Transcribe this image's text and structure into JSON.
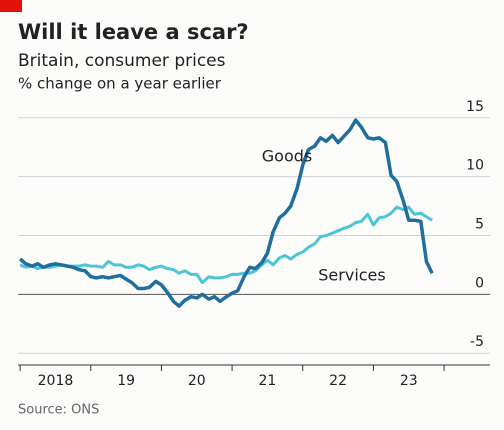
{
  "chart_data": {
    "type": "line",
    "title": "Will it leave a scar?",
    "subtitle": "Britain, consumer prices",
    "y_label": "% change on a year earlier",
    "source": "Source: ONS",
    "x": [
      2018.0,
      2018.08,
      2018.17,
      2018.25,
      2018.33,
      2018.42,
      2018.5,
      2018.58,
      2018.67,
      2018.75,
      2018.83,
      2018.92,
      2019.0,
      2019.08,
      2019.17,
      2019.25,
      2019.33,
      2019.42,
      2019.5,
      2019.58,
      2019.67,
      2019.75,
      2019.83,
      2019.92,
      2020.0,
      2020.08,
      2020.17,
      2020.25,
      2020.33,
      2020.42,
      2020.5,
      2020.58,
      2020.67,
      2020.75,
      2020.83,
      2020.92,
      2021.0,
      2021.08,
      2021.17,
      2021.25,
      2021.33,
      2021.42,
      2021.5,
      2021.58,
      2021.67,
      2021.75,
      2021.83,
      2021.92,
      2022.0,
      2022.08,
      2022.17,
      2022.25,
      2022.33,
      2022.42,
      2022.5,
      2022.58,
      2022.67,
      2022.75,
      2022.83,
      2022.92,
      2023.0,
      2023.08,
      2023.17,
      2023.25,
      2023.33,
      2023.42,
      2023.5,
      2023.58,
      2023.67,
      2023.75,
      2023.83
    ],
    "series": [
      {
        "name": "Goods",
        "color": "#1f6e9e",
        "values": [
          3.0,
          2.6,
          2.4,
          2.6,
          2.3,
          2.5,
          2.6,
          2.5,
          2.4,
          2.3,
          2.1,
          2.0,
          1.5,
          1.4,
          1.5,
          1.4,
          1.5,
          1.6,
          1.3,
          1.0,
          0.5,
          0.5,
          0.6,
          1.1,
          0.8,
          0.2,
          -0.6,
          -1.0,
          -0.5,
          -0.2,
          -0.3,
          0.0,
          -0.4,
          -0.2,
          -0.6,
          -0.2,
          0.1,
          0.3,
          1.5,
          2.3,
          2.2,
          2.7,
          3.5,
          5.3,
          6.5,
          6.9,
          7.5,
          9.0,
          11.0,
          12.3,
          12.6,
          13.3,
          13.0,
          13.5,
          12.9,
          13.4,
          14.0,
          14.8,
          14.2,
          13.3,
          13.2,
          13.3,
          12.9,
          10.1,
          9.6,
          8.0,
          6.3,
          6.3,
          6.2,
          2.8,
          1.8
        ]
      },
      {
        "name": "Services",
        "color": "#4cc6d6",
        "values": [
          2.5,
          2.3,
          2.4,
          2.2,
          2.3,
          2.3,
          2.4,
          2.5,
          2.4,
          2.4,
          2.4,
          2.5,
          2.4,
          2.4,
          2.3,
          2.8,
          2.5,
          2.5,
          2.3,
          2.3,
          2.5,
          2.4,
          2.1,
          2.3,
          2.4,
          2.2,
          2.1,
          1.8,
          2.0,
          1.7,
          1.7,
          1.0,
          1.5,
          1.4,
          1.4,
          1.5,
          1.7,
          1.7,
          1.8,
          1.8,
          2.0,
          2.5,
          2.9,
          2.5,
          3.1,
          3.3,
          3.0,
          3.4,
          3.6,
          4.0,
          4.3,
          4.9,
          5.0,
          5.2,
          5.4,
          5.6,
          5.8,
          6.1,
          6.2,
          6.8,
          5.9,
          6.5,
          6.6,
          6.9,
          7.4,
          7.2,
          7.4,
          6.8,
          6.9,
          6.6,
          6.3
        ]
      }
    ],
    "xlim": [
      2017.97,
      2024.65
    ],
    "xticks": [
      2018,
      2019,
      2020,
      2021,
      2022,
      2023,
      2024
    ],
    "xlabels": [
      {
        "value": 2018.5,
        "label": "2018"
      },
      {
        "value": 2019.5,
        "label": "19"
      },
      {
        "value": 2020.5,
        "label": "20"
      },
      {
        "value": 2021.5,
        "label": "21"
      },
      {
        "value": 2022.5,
        "label": "22"
      },
      {
        "value": 2023.5,
        "label": "23"
      }
    ],
    "ylim": [
      -6.0,
      16.0
    ],
    "yticks": [
      -5,
      0,
      5,
      10,
      15
    ],
    "grid": true
  }
}
